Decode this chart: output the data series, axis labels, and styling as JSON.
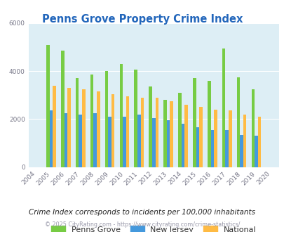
{
  "title": "Penns Grove Property Crime Index",
  "years": [
    2004,
    2005,
    2006,
    2007,
    2008,
    2009,
    2010,
    2011,
    2012,
    2013,
    2014,
    2015,
    2016,
    2017,
    2018,
    2019,
    2020
  ],
  "penns_grove": [
    0,
    5100,
    4850,
    3700,
    3850,
    4000,
    4300,
    4050,
    3350,
    2800,
    3100,
    3700,
    3600,
    4950,
    3750,
    3250,
    0
  ],
  "new_jersey": [
    0,
    2350,
    2250,
    2200,
    2250,
    2100,
    2100,
    2200,
    2050,
    1950,
    1800,
    1650,
    1550,
    1550,
    1350,
    1300,
    0
  ],
  "national": [
    0,
    3400,
    3300,
    3250,
    3150,
    3050,
    2950,
    2900,
    2900,
    2750,
    2600,
    2500,
    2400,
    2350,
    2200,
    2100,
    0
  ],
  "color_penns_grove": "#77cc44",
  "color_nj": "#4499dd",
  "color_national": "#ffbb44",
  "bg_color": "#ddeef5",
  "ylim": [
    0,
    6000
  ],
  "yticks": [
    0,
    2000,
    4000,
    6000
  ],
  "subtitle": "Crime Index corresponds to incidents per 100,000 inhabitants",
  "footer": "© 2025 CityRating.com - https://www.cityrating.com/crime-statistics/",
  "title_color": "#2266bb",
  "subtitle_color": "#222222",
  "footer_color": "#9999aa",
  "bar_width": 0.22
}
